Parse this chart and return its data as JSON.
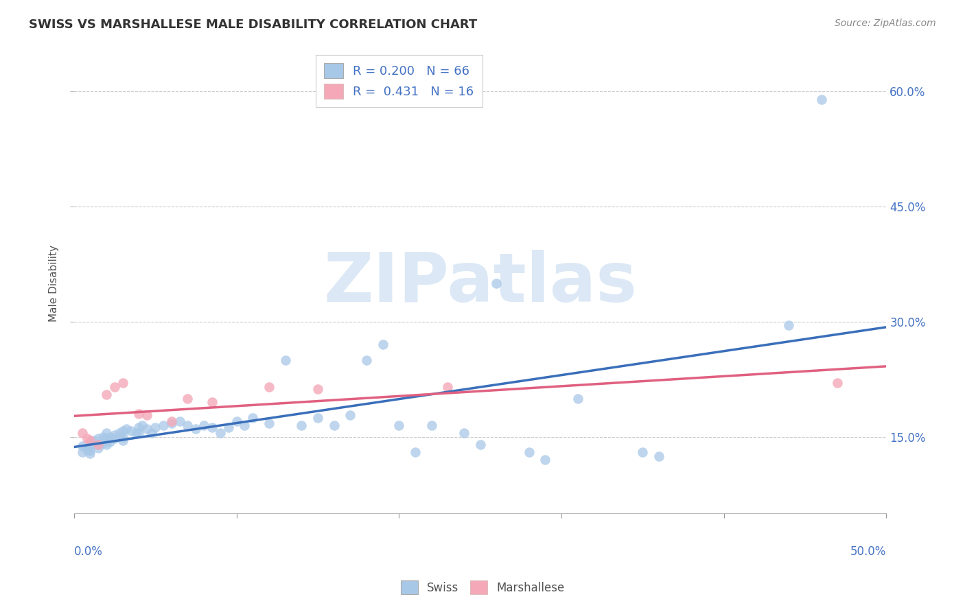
{
  "title": "SWISS VS MARSHALLESE MALE DISABILITY CORRELATION CHART",
  "source": "Source: ZipAtlas.com",
  "ylabel": "Male Disability",
  "xlim": [
    0.0,
    0.5
  ],
  "ylim": [
    0.05,
    0.65
  ],
  "yticks": [
    0.15,
    0.3,
    0.45,
    0.6
  ],
  "ytick_labels": [
    "15.0%",
    "30.0%",
    "45.0%",
    "60.0%"
  ],
  "xticks": [
    0.0,
    0.1,
    0.2,
    0.3,
    0.4,
    0.5
  ],
  "swiss_color": "#a8c8e8",
  "marshallese_color": "#f4a8b8",
  "swiss_line_color": "#3a6fba",
  "marshallese_line_color": "#e06080",
  "swiss_R": 0.2,
  "swiss_N": 66,
  "marshallese_R": 0.431,
  "marshallese_N": 16,
  "swiss_x": [
    0.005,
    0.005,
    0.008,
    0.01,
    0.01,
    0.01,
    0.01,
    0.012,
    0.015,
    0.015,
    0.015,
    0.018,
    0.018,
    0.02,
    0.02,
    0.02,
    0.022,
    0.022,
    0.025,
    0.025,
    0.028,
    0.03,
    0.03,
    0.03,
    0.032,
    0.035,
    0.038,
    0.04,
    0.04,
    0.042,
    0.045,
    0.048,
    0.05,
    0.055,
    0.06,
    0.065,
    0.07,
    0.075,
    0.08,
    0.085,
    0.09,
    0.095,
    0.1,
    0.105,
    0.11,
    0.12,
    0.13,
    0.14,
    0.15,
    0.16,
    0.17,
    0.18,
    0.19,
    0.2,
    0.21,
    0.22,
    0.24,
    0.25,
    0.26,
    0.28,
    0.29,
    0.31,
    0.35,
    0.36,
    0.44,
    0.46
  ],
  "swiss_y": [
    0.138,
    0.13,
    0.133,
    0.142,
    0.138,
    0.132,
    0.128,
    0.145,
    0.148,
    0.14,
    0.135,
    0.15,
    0.142,
    0.155,
    0.148,
    0.14,
    0.15,
    0.143,
    0.152,
    0.148,
    0.155,
    0.158,
    0.15,
    0.145,
    0.16,
    0.158,
    0.155,
    0.162,
    0.155,
    0.165,
    0.16,
    0.155,
    0.162,
    0.165,
    0.168,
    0.17,
    0.165,
    0.16,
    0.165,
    0.162,
    0.155,
    0.162,
    0.17,
    0.165,
    0.175,
    0.168,
    0.25,
    0.165,
    0.175,
    0.165,
    0.178,
    0.25,
    0.27,
    0.165,
    0.13,
    0.165,
    0.155,
    0.14,
    0.35,
    0.13,
    0.12,
    0.2,
    0.13,
    0.125,
    0.295,
    0.59
  ],
  "marshallese_x": [
    0.005,
    0.008,
    0.01,
    0.015,
    0.02,
    0.025,
    0.03,
    0.04,
    0.045,
    0.06,
    0.07,
    0.085,
    0.12,
    0.15,
    0.23,
    0.47
  ],
  "marshallese_y": [
    0.155,
    0.148,
    0.145,
    0.14,
    0.205,
    0.215,
    0.22,
    0.18,
    0.178,
    0.17,
    0.2,
    0.195,
    0.215,
    0.212,
    0.215,
    0.22
  ]
}
